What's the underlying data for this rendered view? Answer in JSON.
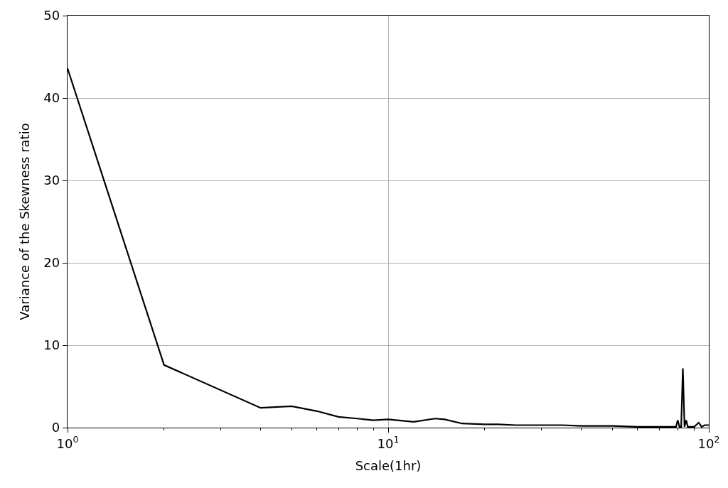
{
  "chart_data": {
    "type": "line",
    "xlabel": "Scale(1hr)",
    "ylabel": "Variance of the Skewness ratio",
    "log": "x",
    "x": [
      1,
      2,
      4,
      5,
      6,
      7,
      8,
      9,
      10,
      12,
      14,
      15,
      17,
      20,
      22,
      25,
      30,
      35,
      40,
      50,
      60,
      70,
      78,
      79,
      80,
      81,
      82,
      83,
      84,
      85,
      86,
      88,
      90,
      93,
      95,
      97,
      100
    ],
    "series": [
      {
        "color": "#000000",
        "values": [
          43.6,
          7.6,
          2.4,
          2.6,
          2.0,
          1.3,
          1.1,
          0.9,
          1.0,
          0.7,
          1.1,
          1.0,
          0.5,
          0.4,
          0.4,
          0.3,
          0.3,
          0.3,
          0.2,
          0.2,
          0.1,
          0.1,
          0.1,
          0.1,
          0.9,
          0.1,
          0.1,
          7.2,
          0.1,
          0.9,
          0.1,
          0.1,
          0.1,
          0.6,
          0.1,
          0.3,
          0.3
        ]
      }
    ],
    "xlim": [
      1,
      100
    ],
    "ylim": [
      0,
      50
    ],
    "xticks": [
      {
        "value": 1,
        "label": "10$^{0}$"
      },
      {
        "value": 10,
        "label": "10$^{1}$"
      },
      {
        "value": 100,
        "label": "10$^{2}$"
      }
    ],
    "yticks": [
      0,
      10,
      20,
      30,
      40,
      50
    ],
    "grid": true,
    "marker": "none",
    "line_style": "solid"
  }
}
